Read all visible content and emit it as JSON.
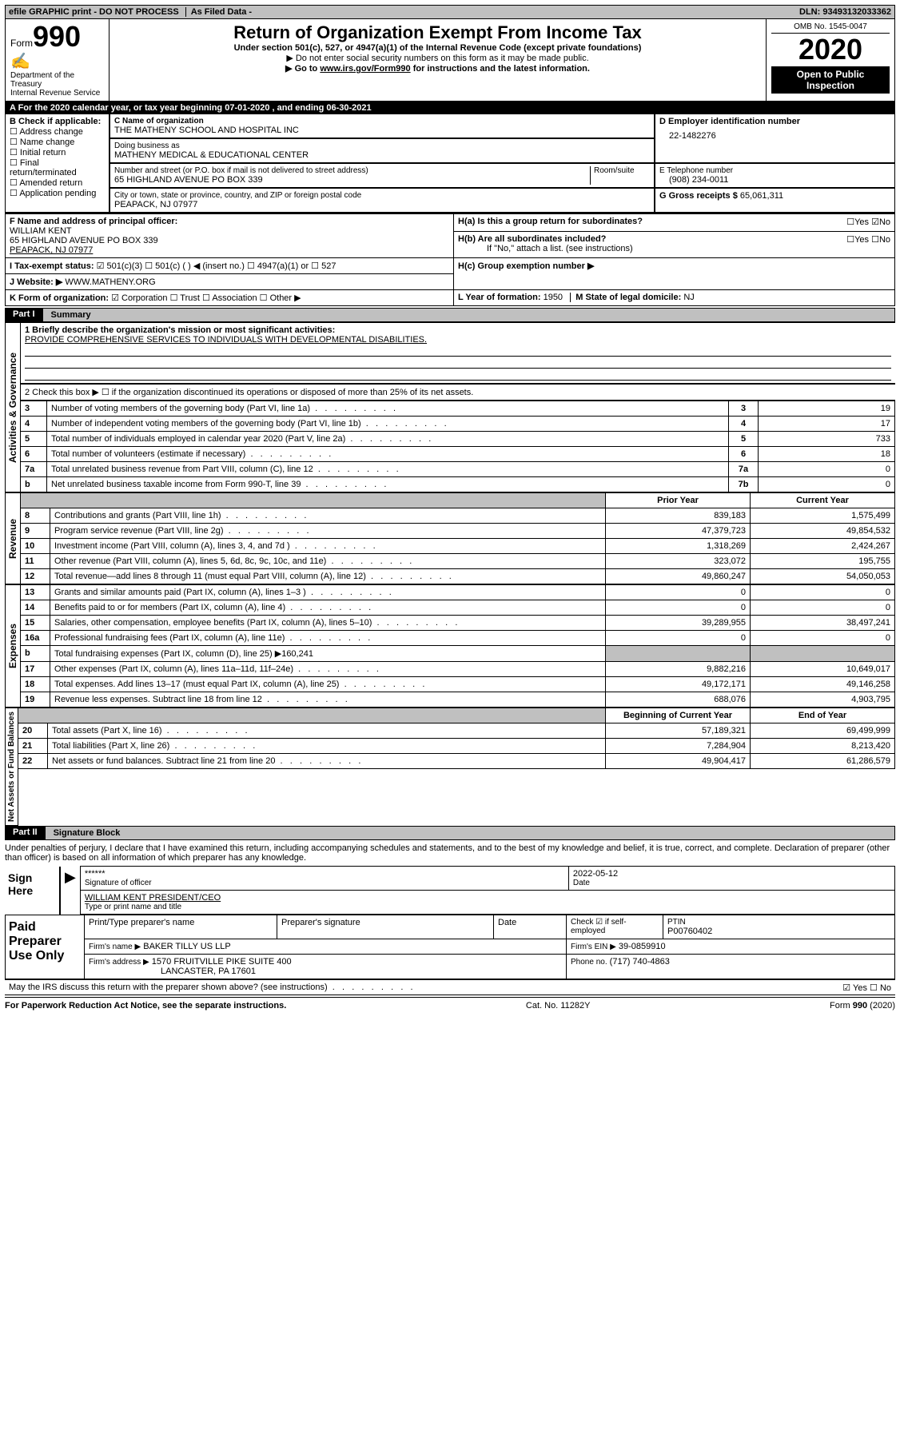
{
  "topbar": {
    "efile": "efile GRAPHIC print - DO NOT PROCESS",
    "asfiled": "As Filed Data -",
    "dln_label": "DLN:",
    "dln": "93493132033362"
  },
  "header": {
    "form_label": "Form",
    "form_no": "990",
    "dept1": "Department of the Treasury",
    "dept2": "Internal Revenue Service",
    "title": "Return of Organization Exempt From Income Tax",
    "sub1": "Under section 501(c), 527, or 4947(a)(1) of the Internal Revenue Code (except private foundations)",
    "sub2": "▶ Do not enter social security numbers on this form as it may be made public.",
    "sub3_pre": "▶ Go to ",
    "sub3_link": "www.irs.gov/Form990",
    "sub3_post": " for instructions and the latest information.",
    "omb": "OMB No. 1545-0047",
    "year": "2020",
    "open": "Open to Public Inspection"
  },
  "lineA": {
    "text_pre": "A   For the 2020 calendar year, or tax year beginning ",
    "begin": "07-01-2020",
    "mid": " , and ending ",
    "end": "06-30-2021"
  },
  "boxB": {
    "title": "B Check if applicable:",
    "items": [
      "Address change",
      "Name change",
      "Initial return",
      "Final return/terminated",
      "Amended return",
      "Application pending"
    ]
  },
  "boxC": {
    "label": "C Name of organization",
    "name": "THE MATHENY SCHOOL AND HOSPITAL INC",
    "dba_label": "Doing business as",
    "dba": "MATHENY MEDICAL & EDUCATIONAL CENTER",
    "addr_label": "Number and street (or P.O. box if mail is not delivered to street address)",
    "addr": "65 HIGHLAND AVENUE PO BOX 339",
    "room_label": "Room/suite",
    "city_label": "City or town, state or province, country, and ZIP or foreign postal code",
    "city": "PEAPACK, NJ  07977"
  },
  "boxD": {
    "label": "D Employer identification number",
    "value": "22-1482276"
  },
  "boxE": {
    "label": "E Telephone number",
    "value": "(908) 234-0011"
  },
  "boxG": {
    "label": "G Gross receipts $",
    "value": "65,061,311"
  },
  "boxF": {
    "label": "F  Name and address of principal officer:",
    "name": "WILLIAM KENT",
    "addr1": "65 HIGHLAND AVENUE PO BOX 339",
    "addr2": "PEAPACK, NJ  07977"
  },
  "boxH": {
    "a_label": "H(a)  Is this a group return for subordinates?",
    "a_yes": "Yes",
    "a_no": "No",
    "b_label": "H(b)  Are all subordinates included?",
    "b_note": "If \"No,\" attach a list. (see instructions)",
    "c_label": "H(c)  Group exemption number ▶"
  },
  "lineI": {
    "label": "I   Tax-exempt status:",
    "opt1": "501(c)(3)",
    "opt2": "501(c) (   ) ◀ (insert no.)",
    "opt3": "4947(a)(1) or",
    "opt4": "527"
  },
  "lineJ": {
    "label": "J   Website: ▶",
    "value": "WWW.MATHENY.ORG"
  },
  "lineK": {
    "label": "K Form of organization:",
    "opts": [
      "Corporation",
      "Trust",
      "Association",
      "Other ▶"
    ]
  },
  "lineL": {
    "label": "L Year of formation:",
    "value": "1950"
  },
  "lineM": {
    "label": "M State of legal domicile:",
    "value": "NJ"
  },
  "partI": {
    "label": "Part I",
    "title": "Summary"
  },
  "summary": {
    "l1_label": "1 Briefly describe the organization's mission or most significant activities:",
    "l1_text": "PROVIDE COMPREHENSIVE SERVICES TO INDIVIDUALS WITH DEVELOPMENTAL DISABILITIES.",
    "l2": "2  Check this box ▶ ☐ if the organization discontinued its operations or disposed of more than 25% of its net assets.",
    "rows_gov": [
      {
        "n": "3",
        "label": "Number of voting members of the governing body (Part VI, line 1a)",
        "box": "3",
        "val": "19"
      },
      {
        "n": "4",
        "label": "Number of independent voting members of the governing body (Part VI, line 1b)",
        "box": "4",
        "val": "17"
      },
      {
        "n": "5",
        "label": "Total number of individuals employed in calendar year 2020 (Part V, line 2a)",
        "box": "5",
        "val": "733"
      },
      {
        "n": "6",
        "label": "Total number of volunteers (estimate if necessary)",
        "box": "6",
        "val": "18"
      },
      {
        "n": "7a",
        "label": "Total unrelated business revenue from Part VIII, column (C), line 12",
        "box": "7a",
        "val": "0"
      },
      {
        "n": "b",
        "label": "Net unrelated business taxable income from Form 990-T, line 39",
        "box": "7b",
        "val": "0"
      }
    ],
    "col_prior": "Prior Year",
    "col_current": "Current Year",
    "rows_rev": [
      {
        "n": "8",
        "label": "Contributions and grants (Part VIII, line 1h)",
        "p": "839,183",
        "c": "1,575,499"
      },
      {
        "n": "9",
        "label": "Program service revenue (Part VIII, line 2g)",
        "p": "47,379,723",
        "c": "49,854,532"
      },
      {
        "n": "10",
        "label": "Investment income (Part VIII, column (A), lines 3, 4, and 7d )",
        "p": "1,318,269",
        "c": "2,424,267"
      },
      {
        "n": "11",
        "label": "Other revenue (Part VIII, column (A), lines 5, 6d, 8c, 9c, 10c, and 11e)",
        "p": "323,072",
        "c": "195,755"
      },
      {
        "n": "12",
        "label": "Total revenue—add lines 8 through 11 (must equal Part VIII, column (A), line 12)",
        "p": "49,860,247",
        "c": "54,050,053"
      }
    ],
    "rows_exp": [
      {
        "n": "13",
        "label": "Grants and similar amounts paid (Part IX, column (A), lines 1–3 )",
        "p": "0",
        "c": "0"
      },
      {
        "n": "14",
        "label": "Benefits paid to or for members (Part IX, column (A), line 4)",
        "p": "0",
        "c": "0"
      },
      {
        "n": "15",
        "label": "Salaries, other compensation, employee benefits (Part IX, column (A), lines 5–10)",
        "p": "39,289,955",
        "c": "38,497,241"
      },
      {
        "n": "16a",
        "label": "Professional fundraising fees (Part IX, column (A), line 11e)",
        "p": "0",
        "c": "0"
      },
      {
        "n": "b",
        "label": "Total fundraising expenses (Part IX, column (D), line 25) ▶160,241",
        "p": "",
        "c": ""
      },
      {
        "n": "17",
        "label": "Other expenses (Part IX, column (A), lines 11a–11d, 11f–24e)",
        "p": "9,882,216",
        "c": "10,649,017"
      },
      {
        "n": "18",
        "label": "Total expenses. Add lines 13–17 (must equal Part IX, column (A), line 25)",
        "p": "49,172,171",
        "c": "49,146,258"
      },
      {
        "n": "19",
        "label": "Revenue less expenses. Subtract line 18 from line 12",
        "p": "688,076",
        "c": "4,903,795"
      }
    ],
    "col_begin": "Beginning of Current Year",
    "col_end": "End of Year",
    "rows_net": [
      {
        "n": "20",
        "label": "Total assets (Part X, line 16)",
        "p": "57,189,321",
        "c": "69,499,999"
      },
      {
        "n": "21",
        "label": "Total liabilities (Part X, line 26)",
        "p": "7,284,904",
        "c": "8,213,420"
      },
      {
        "n": "22",
        "label": "Net assets or fund balances. Subtract line 21 from line 20",
        "p": "49,904,417",
        "c": "61,286,579"
      }
    ],
    "side_gov": "Activities & Governance",
    "side_rev": "Revenue",
    "side_exp": "Expenses",
    "side_net": "Net Assets or Fund Balances"
  },
  "partII": {
    "label": "Part II",
    "title": "Signature Block"
  },
  "sig": {
    "declaration": "Under penalties of perjury, I declare that I have examined this return, including accompanying schedules and statements, and to the best of my knowledge and belief, it is true, correct, and complete. Declaration of preparer (other than officer) is based on all information of which preparer has any knowledge.",
    "sign_here": "Sign Here",
    "stars": "******",
    "sig_label": "Signature of officer",
    "date_label": "Date",
    "date": "2022-05-12",
    "officer": "WILLIAM KENT  PRESIDENT/CEO",
    "officer_label": "Type or print name and title"
  },
  "paid": {
    "side": "Paid Preparer Use Only",
    "h1": "Print/Type preparer's name",
    "h2": "Preparer's signature",
    "h3": "Date",
    "h4": "Check ☑ if self-employed",
    "h5": "PTIN",
    "ptin": "P00760402",
    "firm_label": "Firm's name   ▶",
    "firm": "BAKER TILLY US LLP",
    "ein_label": "Firm's EIN ▶",
    "ein": "39-0859910",
    "addr_label": "Firm's address ▶",
    "addr1": "1570 FRUITVILLE PIKE SUITE 400",
    "addr2": "LANCASTER, PA  17601",
    "phone_label": "Phone no.",
    "phone": "(717) 740-4863",
    "discuss": "May the IRS discuss this return with the preparer shown above? (see instructions)",
    "yes": "Yes",
    "no": "No"
  },
  "footer": {
    "left": "For Paperwork Reduction Act Notice, see the separate instructions.",
    "mid": "Cat. No. 11282Y",
    "right": "Form 990 (2020)"
  }
}
